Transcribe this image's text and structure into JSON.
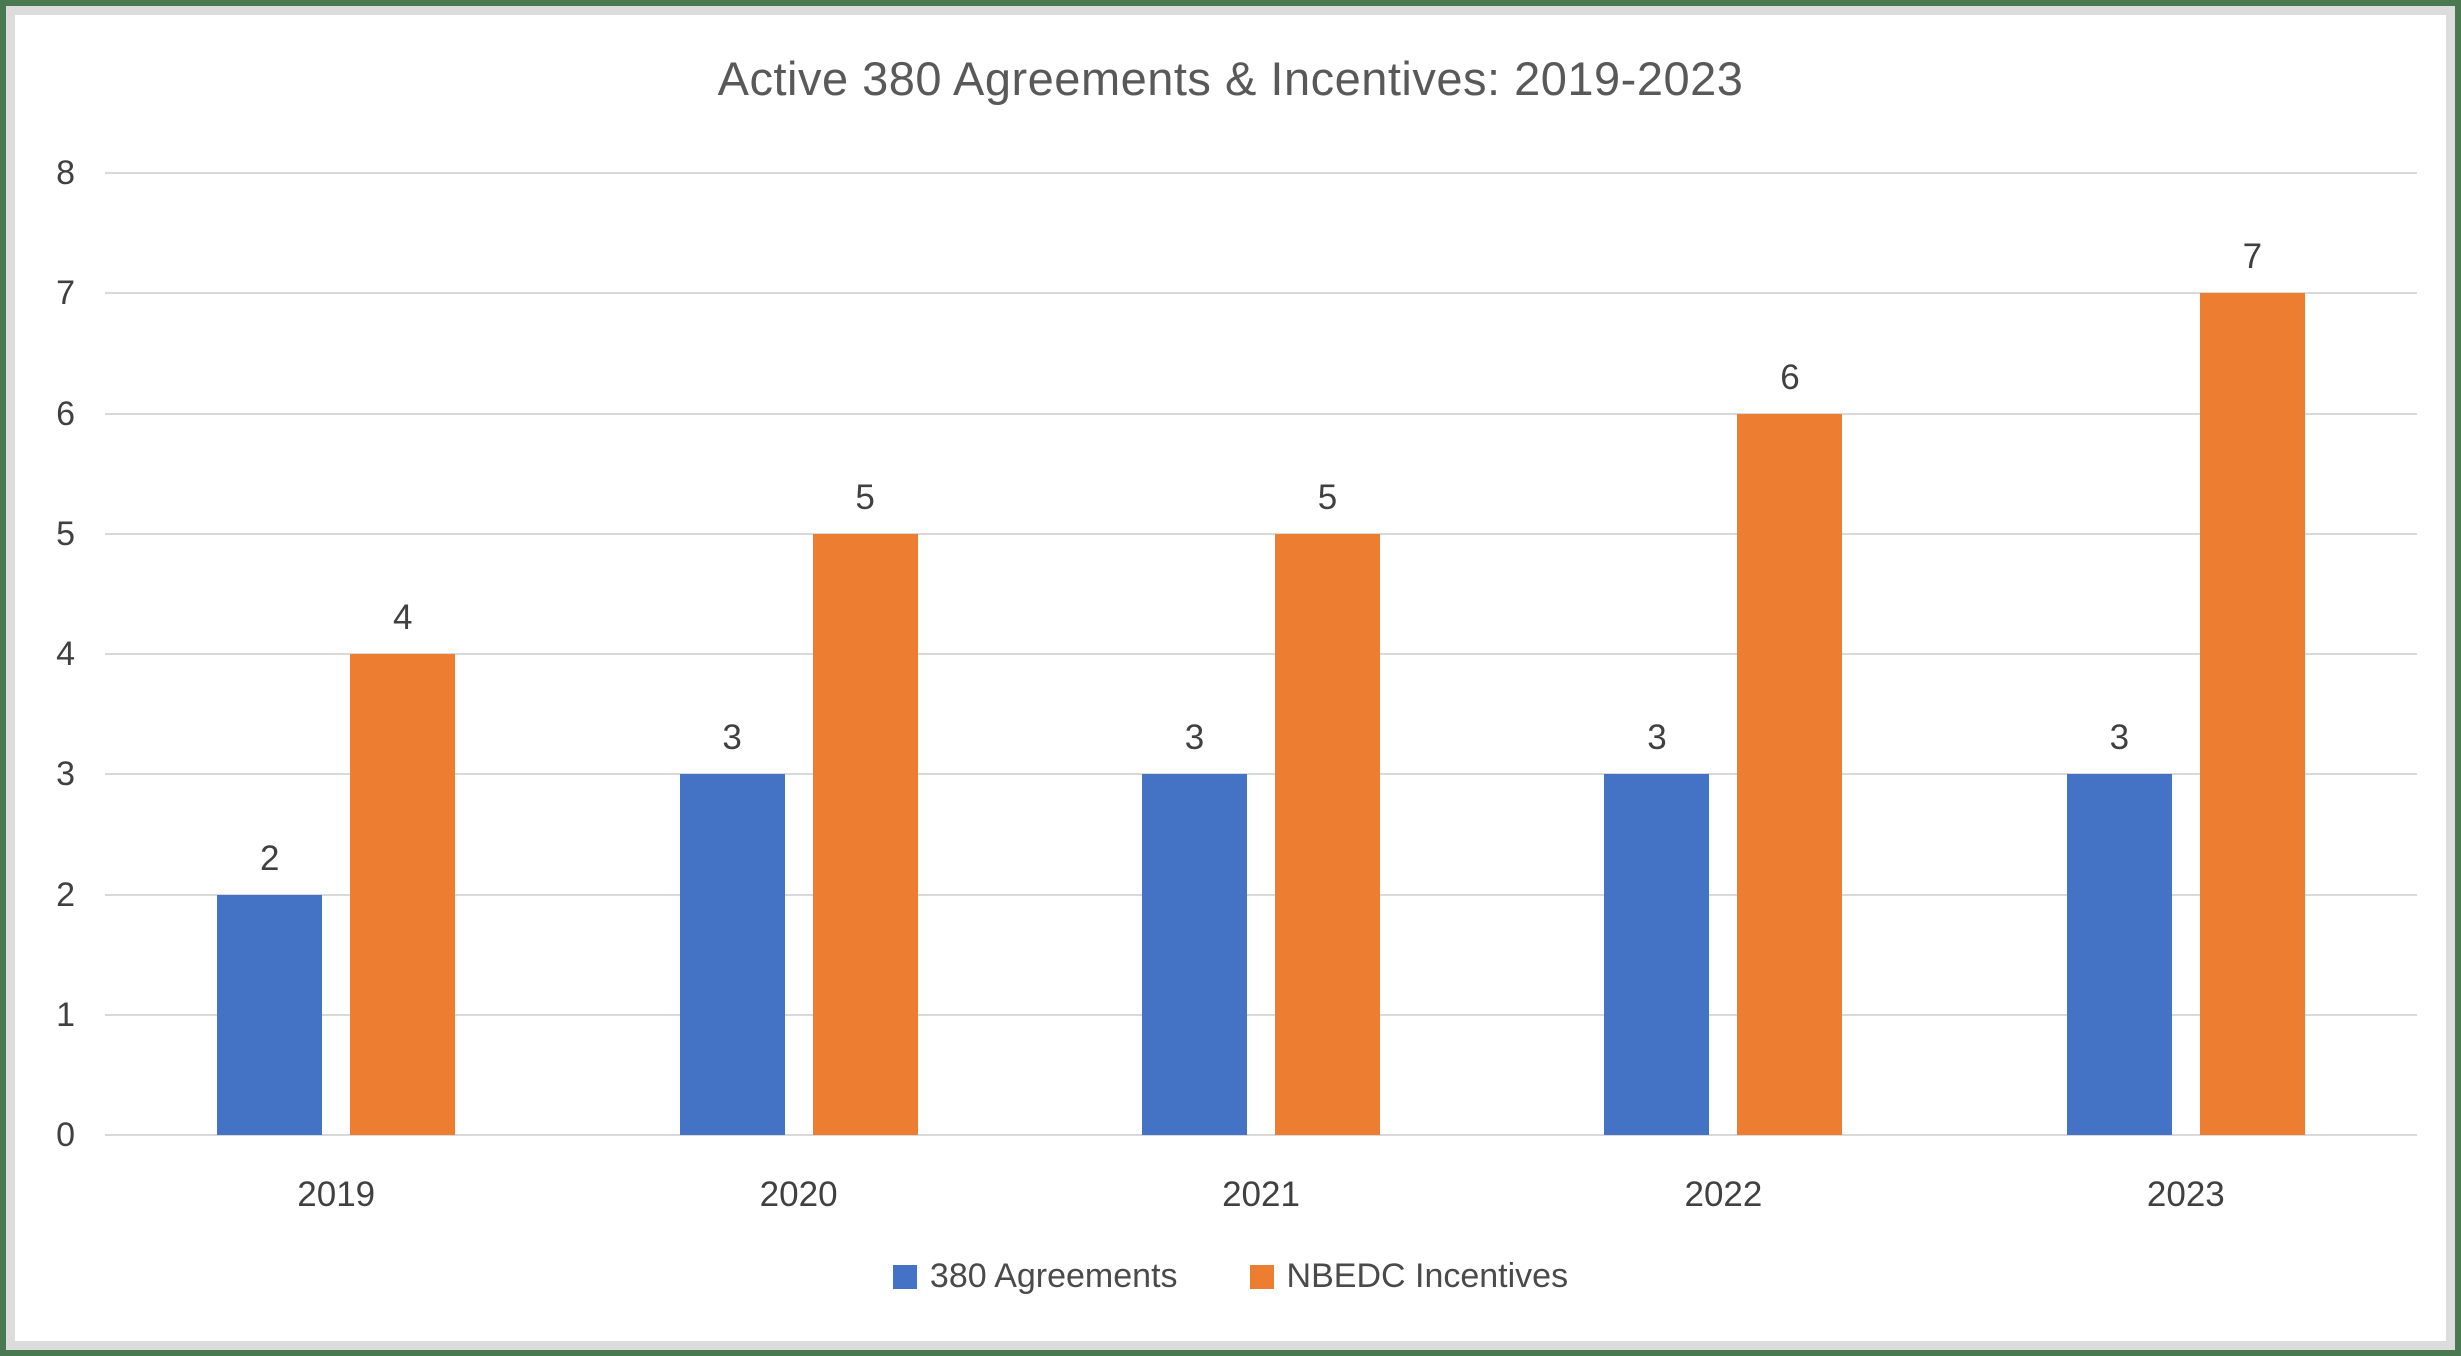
{
  "frame": {
    "outer_border_color": "#4a7850",
    "inner_border_color": "#dcdcdc",
    "background_color": "#ffffff"
  },
  "chart_data": {
    "type": "bar",
    "title": "Active 380 Agreements & Incentives: 2019-2023",
    "categories": [
      "2019",
      "2020",
      "2021",
      "2022",
      "2023"
    ],
    "series": [
      {
        "name": "380 Agreements",
        "color": "#4472C4",
        "values": [
          2,
          3,
          3,
          3,
          3
        ]
      },
      {
        "name": "NBEDC Incentives",
        "color": "#ED7D31",
        "values": [
          4,
          5,
          5,
          6,
          7
        ]
      }
    ],
    "xlabel": "",
    "ylabel": "",
    "ylim": [
      0,
      8
    ],
    "yticks": [
      0,
      1,
      2,
      3,
      4,
      5,
      6,
      7,
      8
    ],
    "grid": true,
    "gridline_color": "#d9d9d9",
    "data_labels": true,
    "data_label_color": "#404040",
    "tick_label_color": "#404040",
    "title_color": "#595959",
    "legend_position": "bottom"
  }
}
